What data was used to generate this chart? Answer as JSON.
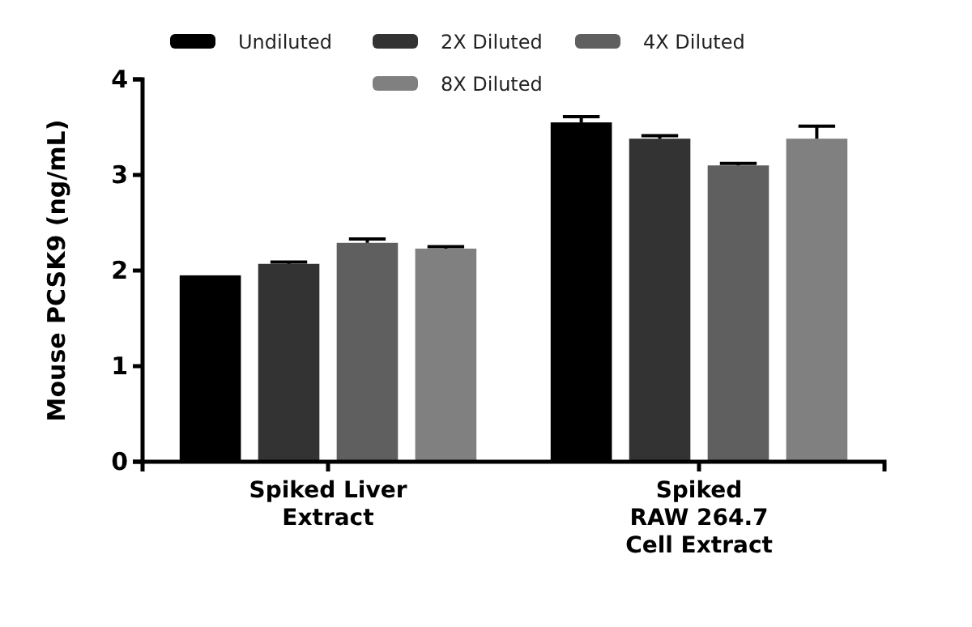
{
  "chart_data": {
    "type": "bar",
    "ylabel": "Mouse PCSK9 (ng/mL)",
    "categories": [
      "Spiked Liver\nExtract",
      "Spiked\nRAW 264.7\nCell Extract"
    ],
    "series": [
      {
        "name": "Undiluted",
        "color": "#000000",
        "values": [
          1.95,
          3.55
        ],
        "errors": [
          null,
          0.06
        ]
      },
      {
        "name": "2X Diluted",
        "color": "#333333",
        "values": [
          2.07,
          3.38
        ],
        "errors": [
          0.02,
          0.03
        ]
      },
      {
        "name": "4X Diluted",
        "color": "#5f5f5f",
        "values": [
          2.29,
          3.1
        ],
        "errors": [
          0.04,
          0.02
        ]
      },
      {
        "name": "8X Diluted",
        "color": "#808080",
        "values": [
          2.23,
          3.38
        ],
        "errors": [
          0.02,
          0.13
        ]
      }
    ],
    "ylim": [
      0,
      4
    ],
    "yticks": [
      0,
      1,
      2,
      3,
      4
    ],
    "grid": false,
    "legend": "top"
  }
}
